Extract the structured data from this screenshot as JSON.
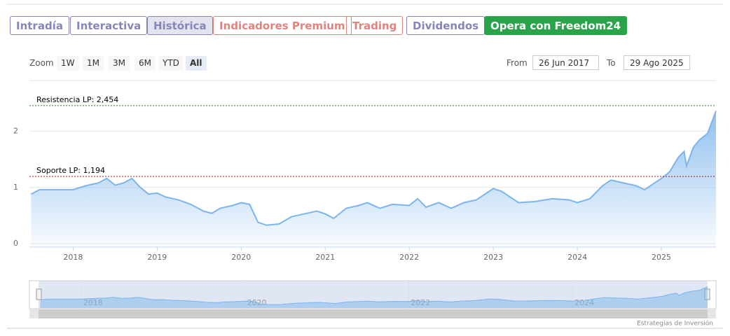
{
  "tabs": [
    "Intradía",
    "Interactiva",
    "Histórica",
    "Indicadores Premium",
    "Trading",
    "Dividendos",
    "Opera con Freedom24"
  ],
  "zoom": {
    "label": "Zoom",
    "buttons": [
      "1W",
      "1M",
      "3M",
      "6M",
      "YTD",
      "All"
    ]
  },
  "range": {
    "from_label": "From",
    "from": "26 Jun 2017",
    "to_label": "To",
    "to": "29 Ago 2025"
  },
  "credit": "Estrategias de Inversión",
  "chart_data": {
    "type": "area",
    "x": [
      2017.5,
      2017.6,
      2017.75,
      2018.0,
      2018.15,
      2018.3,
      2018.4,
      2018.5,
      2018.6,
      2018.7,
      2018.8,
      2018.9,
      2019.0,
      2019.1,
      2019.25,
      2019.4,
      2019.55,
      2019.65,
      2019.75,
      2019.9,
      2020.0,
      2020.1,
      2020.2,
      2020.3,
      2020.45,
      2020.6,
      2020.75,
      2020.9,
      2021.0,
      2021.1,
      2021.25,
      2021.4,
      2021.5,
      2021.65,
      2021.8,
      2022.0,
      2022.1,
      2022.2,
      2022.35,
      2022.5,
      2022.65,
      2022.8,
      2023.0,
      2023.1,
      2023.3,
      2023.5,
      2023.7,
      2023.9,
      2024.0,
      2024.15,
      2024.3,
      2024.4,
      2024.55,
      2024.7,
      2024.8,
      2024.9,
      2025.0,
      2025.1,
      2025.2,
      2025.27,
      2025.3,
      2025.38,
      2025.45,
      2025.55,
      2025.6,
      2025.65
    ],
    "series": [
      {
        "color": "#7cb5ec",
        "values": [
          0.88,
          0.96,
          0.96,
          0.96,
          1.03,
          1.08,
          1.16,
          1.04,
          1.08,
          1.16,
          1.0,
          0.88,
          0.9,
          0.83,
          0.78,
          0.7,
          0.58,
          0.54,
          0.63,
          0.68,
          0.73,
          0.7,
          0.38,
          0.33,
          0.35,
          0.48,
          0.53,
          0.58,
          0.53,
          0.45,
          0.63,
          0.68,
          0.73,
          0.63,
          0.7,
          0.68,
          0.8,
          0.65,
          0.73,
          0.63,
          0.73,
          0.78,
          0.98,
          0.93,
          0.73,
          0.75,
          0.8,
          0.78,
          0.73,
          0.8,
          1.03,
          1.13,
          1.08,
          1.03,
          0.96,
          1.06,
          1.16,
          1.28,
          1.53,
          1.64,
          1.38,
          1.71,
          1.84,
          1.96,
          2.16,
          2.36
        ]
      }
    ],
    "xlim": [
      2017.48,
      2025.65
    ],
    "xticks": [
      2018,
      2019,
      2020,
      2021,
      2022,
      2023,
      2024,
      2025
    ],
    "ylim": [
      -0.06,
      2.9
    ],
    "yticks": [
      0,
      1,
      2
    ],
    "grid": true,
    "annotations": [
      {
        "label": "Resistencia LP: 2,454",
        "value": 2.454,
        "color": "#2e7d32"
      },
      {
        "label": "Soporte LP: 1,194",
        "value": 1.194,
        "color": "#9b1c1c"
      }
    ],
    "navigator_xticks": [
      2018,
      2020,
      2022,
      2024
    ]
  }
}
